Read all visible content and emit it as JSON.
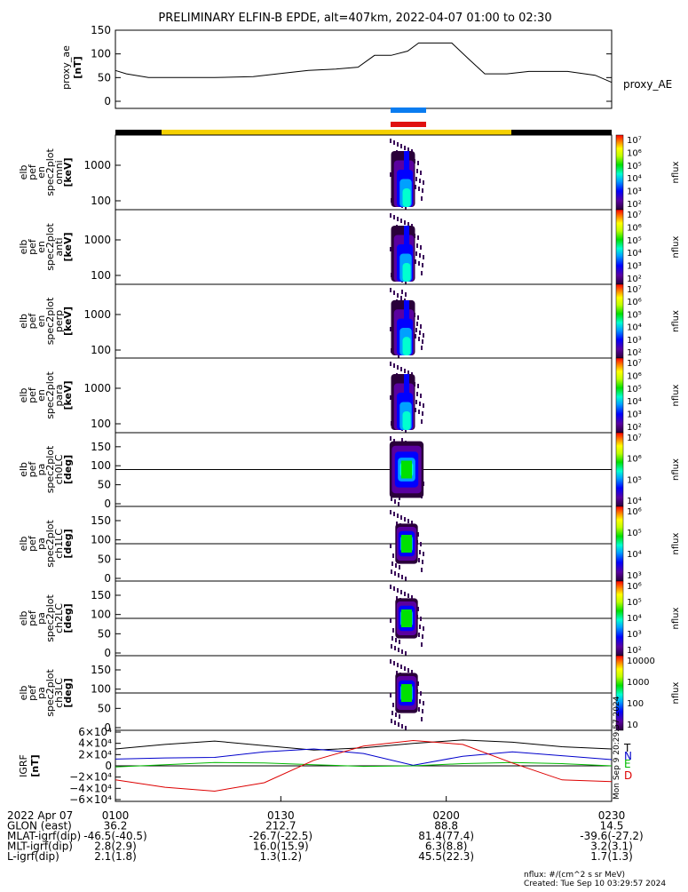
{
  "title": "PRELIMINARY ELFIN-B EPDE, alt=407km, 2022-04-07 01:00 to 02:30",
  "ae_panel": {
    "ylabel": [
      "proxy_ae",
      "[nT]"
    ],
    "yticks": [
      "150",
      "100",
      "50",
      "0"
    ],
    "series_label": "proxy_AE"
  },
  "chart_data": {
    "type": "line",
    "title": "PRELIMINARY ELFIN-B EPDE, alt=407km, 2022-04-07 01:00 to 02:30",
    "x_ticks": [
      "0100",
      "0130",
      "0200",
      "0230"
    ],
    "panels": [
      {
        "name": "proxy_AE",
        "ylabel": "proxy_ae [nT]",
        "ylim": [
          0,
          150
        ],
        "x_minutes": [
          0,
          2,
          6,
          10,
          18,
          25,
          31,
          35,
          40,
          44,
          47,
          50,
          53,
          55,
          57,
          61,
          64,
          67,
          71,
          75,
          82,
          87,
          90
        ],
        "values": [
          65,
          58,
          50,
          50,
          50,
          52,
          60,
          65,
          68,
          72,
          97,
          97,
          106,
          123,
          123,
          123,
          90,
          58,
          58,
          63,
          63,
          55,
          40
        ]
      },
      {
        "name": "IGRF",
        "ylabel": "IGRF [nT]",
        "ylim": [
          -60000,
          60000
        ],
        "x_minutes": [
          0,
          9,
          18,
          27,
          36,
          45,
          54,
          63,
          72,
          81,
          90
        ],
        "series": [
          {
            "name": "T",
            "color": "#000000",
            "values": [
              30000,
              38000,
              44000,
              36000,
              28000,
              32000,
              40000,
              46000,
              42000,
              34000,
              30000
            ]
          },
          {
            "name": "N",
            "color": "#0000cc",
            "values": [
              12000,
              14000,
              15000,
              25000,
              30000,
              22000,
              1000,
              17000,
              25000,
              18000,
              11000
            ]
          },
          {
            "name": "E",
            "color": "#00bb00",
            "values": [
              -2000,
              2000,
              6000,
              5000,
              2000,
              -1000,
              0,
              4000,
              6000,
              4000,
              0
            ]
          },
          {
            "name": "D",
            "color": "#dd0000",
            "values": [
              -25000,
              -38000,
              -45000,
              -30000,
              10000,
              35000,
              45000,
              38000,
              5000,
              -25000,
              -28000
            ]
          }
        ]
      }
    ],
    "grid": false
  },
  "spectrograms": [
    {
      "ylabel": [
        "elb",
        "pef",
        "en",
        "spec2plot",
        "omni",
        "[keV]"
      ],
      "yticks": [
        "1000",
        "100"
      ],
      "cbar": {
        "ticks": [
          "10⁷",
          "10⁶",
          "10⁵",
          "10⁴",
          "10³",
          "10²"
        ],
        "label": "nflux"
      }
    },
    {
      "ylabel": [
        "elb",
        "pef",
        "en",
        "spec2plot",
        "anti",
        "[keV]"
      ],
      "yticks": [
        "1000",
        "100"
      ],
      "cbar": {
        "ticks": [
          "10⁷",
          "10⁶",
          "10⁵",
          "10⁴",
          "10³",
          "10²"
        ],
        "label": "nflux"
      }
    },
    {
      "ylabel": [
        "elb",
        "pef",
        "en",
        "spec2plot",
        "perp",
        "[keV]"
      ],
      "yticks": [
        "1000",
        "100"
      ],
      "cbar": {
        "ticks": [
          "10⁷",
          "10⁶",
          "10⁵",
          "10⁴",
          "10³",
          "10²"
        ],
        "label": "nflux"
      }
    },
    {
      "ylabel": [
        "elb",
        "pef",
        "en",
        "spec2plot",
        "para",
        "[keV]"
      ],
      "yticks": [
        "1000",
        "100"
      ],
      "cbar": {
        "ticks": [
          "10⁷",
          "10⁶",
          "10⁵",
          "10⁴",
          "10³",
          "10²"
        ],
        "label": "nflux"
      }
    },
    {
      "ylabel": [
        "elb",
        "pef",
        "pa",
        "spec2plot",
        "ch0LC",
        "[deg]"
      ],
      "yticks": [
        "150",
        "100",
        "50",
        "0"
      ],
      "cbar": {
        "ticks": [
          "10⁷",
          "10⁶",
          "10⁵",
          "10⁴"
        ],
        "label": "nflux"
      }
    },
    {
      "ylabel": [
        "elb",
        "pef",
        "pa",
        "spec2plot",
        "ch1LC",
        "[deg]"
      ],
      "yticks": [
        "150",
        "100",
        "50",
        "0"
      ],
      "cbar": {
        "ticks": [
          "10⁶",
          "10⁵",
          "10⁴",
          "10³"
        ],
        "label": "nflux"
      }
    },
    {
      "ylabel": [
        "elb",
        "pef",
        "pa",
        "spec2plot",
        "ch2LC",
        "[deg]"
      ],
      "yticks": [
        "150",
        "100",
        "50",
        "0"
      ],
      "cbar": {
        "ticks": [
          "10⁶",
          "10⁵",
          "10⁴",
          "10³",
          "10²"
        ],
        "label": "nflux"
      }
    },
    {
      "ylabel": [
        "elb",
        "pef",
        "pa",
        "spec2plot",
        "ch3LC",
        "[deg]"
      ],
      "yticks": [
        "150",
        "100",
        "50",
        "0"
      ],
      "cbar": {
        "ticks": [
          "10000",
          "1000",
          "100",
          "10"
        ],
        "label": "nflux"
      }
    }
  ],
  "igrf_panel": {
    "ylabel": [
      "IGRF",
      "[nT]"
    ],
    "yticks": [
      "6×10⁴",
      "4×10⁴",
      "2×10⁴",
      "0",
      "−2×10⁴",
      "−4×10⁴",
      "−6×10⁴"
    ],
    "legend": [
      "T",
      "N",
      "E",
      "D"
    ],
    "stamp": "Mon Sep 9 20:29:57 2024"
  },
  "footer": {
    "rows": [
      [
        "2022 Apr 07",
        "0100",
        "0130",
        "0200",
        "0230"
      ],
      [
        "GLON (east)",
        "36.2",
        "212.7",
        "88.8",
        "14.5"
      ],
      [
        "MLAT-igrf(dip)",
        "-46.5(-40.5)",
        "-26.7(-22.5)",
        "81.4(77.4)",
        "-39.6(-27.2)"
      ],
      [
        "MLT-igrf(dip)",
        "2.8(2.9)",
        "16.0(15.9)",
        "6.3(8.8)",
        "3.2(3.1)"
      ],
      [
        "L-igrf(dip)",
        "2.1(1.8)",
        "1.3(1.2)",
        "45.5(22.3)",
        "1.7(1.3)"
      ]
    ],
    "units_note": "nflux: #/(cm^2 s sr MeV)",
    "created": "Created: Tue Sep 10 03:29:57 2024"
  },
  "colors": {
    "ae_line": "#000000",
    "bar_blue": "#0a7cf0",
    "bar_red": "#e01010",
    "bar_yellow": "#f5d000",
    "bar_black": "#000000"
  }
}
